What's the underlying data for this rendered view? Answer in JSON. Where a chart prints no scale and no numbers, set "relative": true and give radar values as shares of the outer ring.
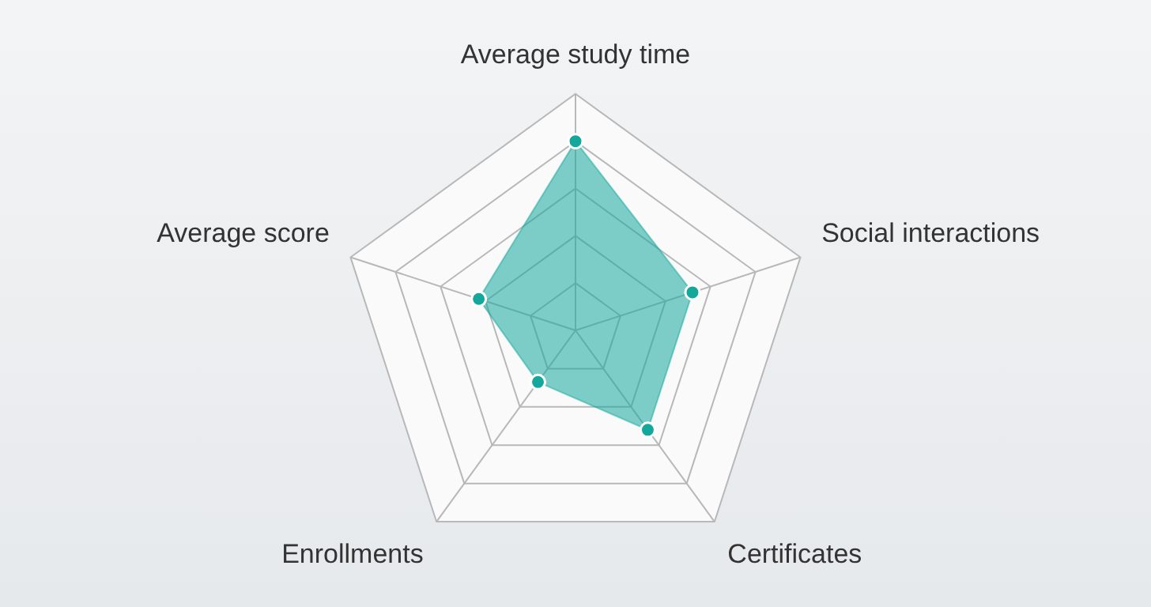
{
  "chart_data": {
    "type": "radar",
    "relative": true,
    "categories": [
      "Average study time",
      "Social interactions",
      "Certificates",
      "Enrollments",
      "Average score"
    ],
    "series": [
      {
        "color": "#14a89c",
        "values": [
          0.8,
          0.52,
          0.52,
          0.27,
          0.43
        ]
      }
    ],
    "grid": true,
    "legend": false,
    "marker": "circle"
  }
}
